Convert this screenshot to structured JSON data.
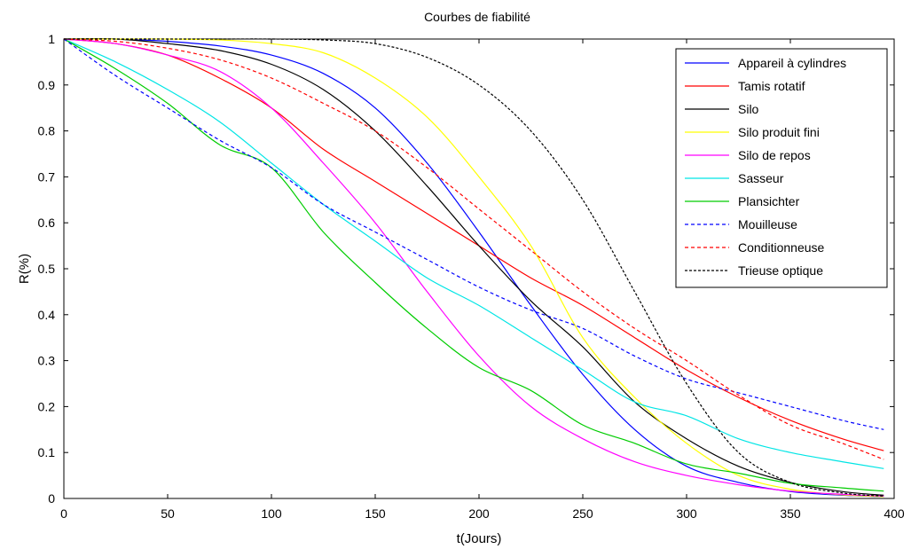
{
  "chart_data": {
    "type": "line",
    "title": "Courbes de fiabilité",
    "xlabel": "t(Jours)",
    "ylabel": "R(%)",
    "xlim": [
      0,
      400
    ],
    "ylim": [
      0,
      1
    ],
    "xticks": [
      0,
      50,
      100,
      150,
      200,
      250,
      300,
      350,
      400
    ],
    "yticks": [
      0,
      0.1,
      0.2,
      0.3,
      0.4,
      0.5,
      0.6,
      0.7,
      0.8,
      0.9,
      1
    ],
    "grid": false,
    "legend_position": "top-right",
    "x": [
      0,
      25,
      50,
      75,
      100,
      125,
      150,
      175,
      200,
      225,
      250,
      275,
      300,
      325,
      350,
      375,
      395
    ],
    "series": [
      {
        "name": "Appareil à cylindres",
        "color": "#0000ff",
        "style": "solid",
        "values": [
          1.0,
          1.0,
          0.995,
          0.985,
          0.965,
          0.925,
          0.85,
          0.73,
          0.58,
          0.42,
          0.27,
          0.15,
          0.07,
          0.035,
          0.015,
          0.007,
          0.004
        ]
      },
      {
        "name": "Tamis rotatif",
        "color": "#ff0000",
        "style": "solid",
        "values": [
          1.0,
          0.99,
          0.965,
          0.915,
          0.85,
          0.76,
          0.69,
          0.62,
          0.55,
          0.48,
          0.42,
          0.35,
          0.28,
          0.22,
          0.17,
          0.13,
          0.104
        ]
      },
      {
        "name": "Silo",
        "color": "#000000",
        "style": "solid",
        "values": [
          1.0,
          1.0,
          0.99,
          0.975,
          0.945,
          0.89,
          0.8,
          0.68,
          0.55,
          0.43,
          0.33,
          0.21,
          0.13,
          0.07,
          0.035,
          0.015,
          0.007
        ]
      },
      {
        "name": "Silo produit fini",
        "color": "#ffff00",
        "style": "solid",
        "values": [
          1.0,
          1.0,
          1.0,
          0.998,
          0.99,
          0.97,
          0.915,
          0.83,
          0.7,
          0.55,
          0.35,
          0.22,
          0.12,
          0.05,
          0.02,
          0.008,
          0.004
        ]
      },
      {
        "name": "Silo de repos",
        "color": "#ff00ff",
        "style": "solid",
        "values": [
          1.0,
          0.99,
          0.965,
          0.93,
          0.85,
          0.73,
          0.6,
          0.45,
          0.31,
          0.2,
          0.13,
          0.08,
          0.05,
          0.03,
          0.016,
          0.009,
          0.005
        ]
      },
      {
        "name": "Sasseur",
        "color": "#00e5e5",
        "style": "solid",
        "values": [
          1.0,
          0.95,
          0.89,
          0.82,
          0.73,
          0.64,
          0.56,
          0.48,
          0.42,
          0.35,
          0.28,
          0.21,
          0.18,
          0.13,
          0.1,
          0.08,
          0.065
        ]
      },
      {
        "name": "Plansichter",
        "color": "#00cc00",
        "style": "solid",
        "values": [
          1.0,
          0.935,
          0.86,
          0.77,
          0.72,
          0.58,
          0.47,
          0.37,
          0.285,
          0.235,
          0.16,
          0.12,
          0.075,
          0.055,
          0.033,
          0.023,
          0.016
        ]
      },
      {
        "name": "Mouilleuse",
        "color": "#0000ff",
        "style": "dashed",
        "values": [
          1.0,
          0.92,
          0.85,
          0.78,
          0.72,
          0.64,
          0.58,
          0.52,
          0.46,
          0.41,
          0.37,
          0.31,
          0.26,
          0.23,
          0.2,
          0.17,
          0.15
        ]
      },
      {
        "name": "Conditionneuse",
        "color": "#ff0000",
        "style": "dashed",
        "values": [
          1.0,
          0.995,
          0.98,
          0.955,
          0.915,
          0.86,
          0.8,
          0.72,
          0.63,
          0.54,
          0.45,
          0.37,
          0.3,
          0.225,
          0.16,
          0.12,
          0.085
        ]
      },
      {
        "name": "Trieuse optique",
        "color": "#000000",
        "style": "dotted",
        "values": [
          1.0,
          1.0,
          1.0,
          1.0,
          1.0,
          0.998,
          0.99,
          0.96,
          0.9,
          0.8,
          0.65,
          0.45,
          0.25,
          0.1,
          0.035,
          0.012,
          0.005
        ]
      }
    ]
  }
}
